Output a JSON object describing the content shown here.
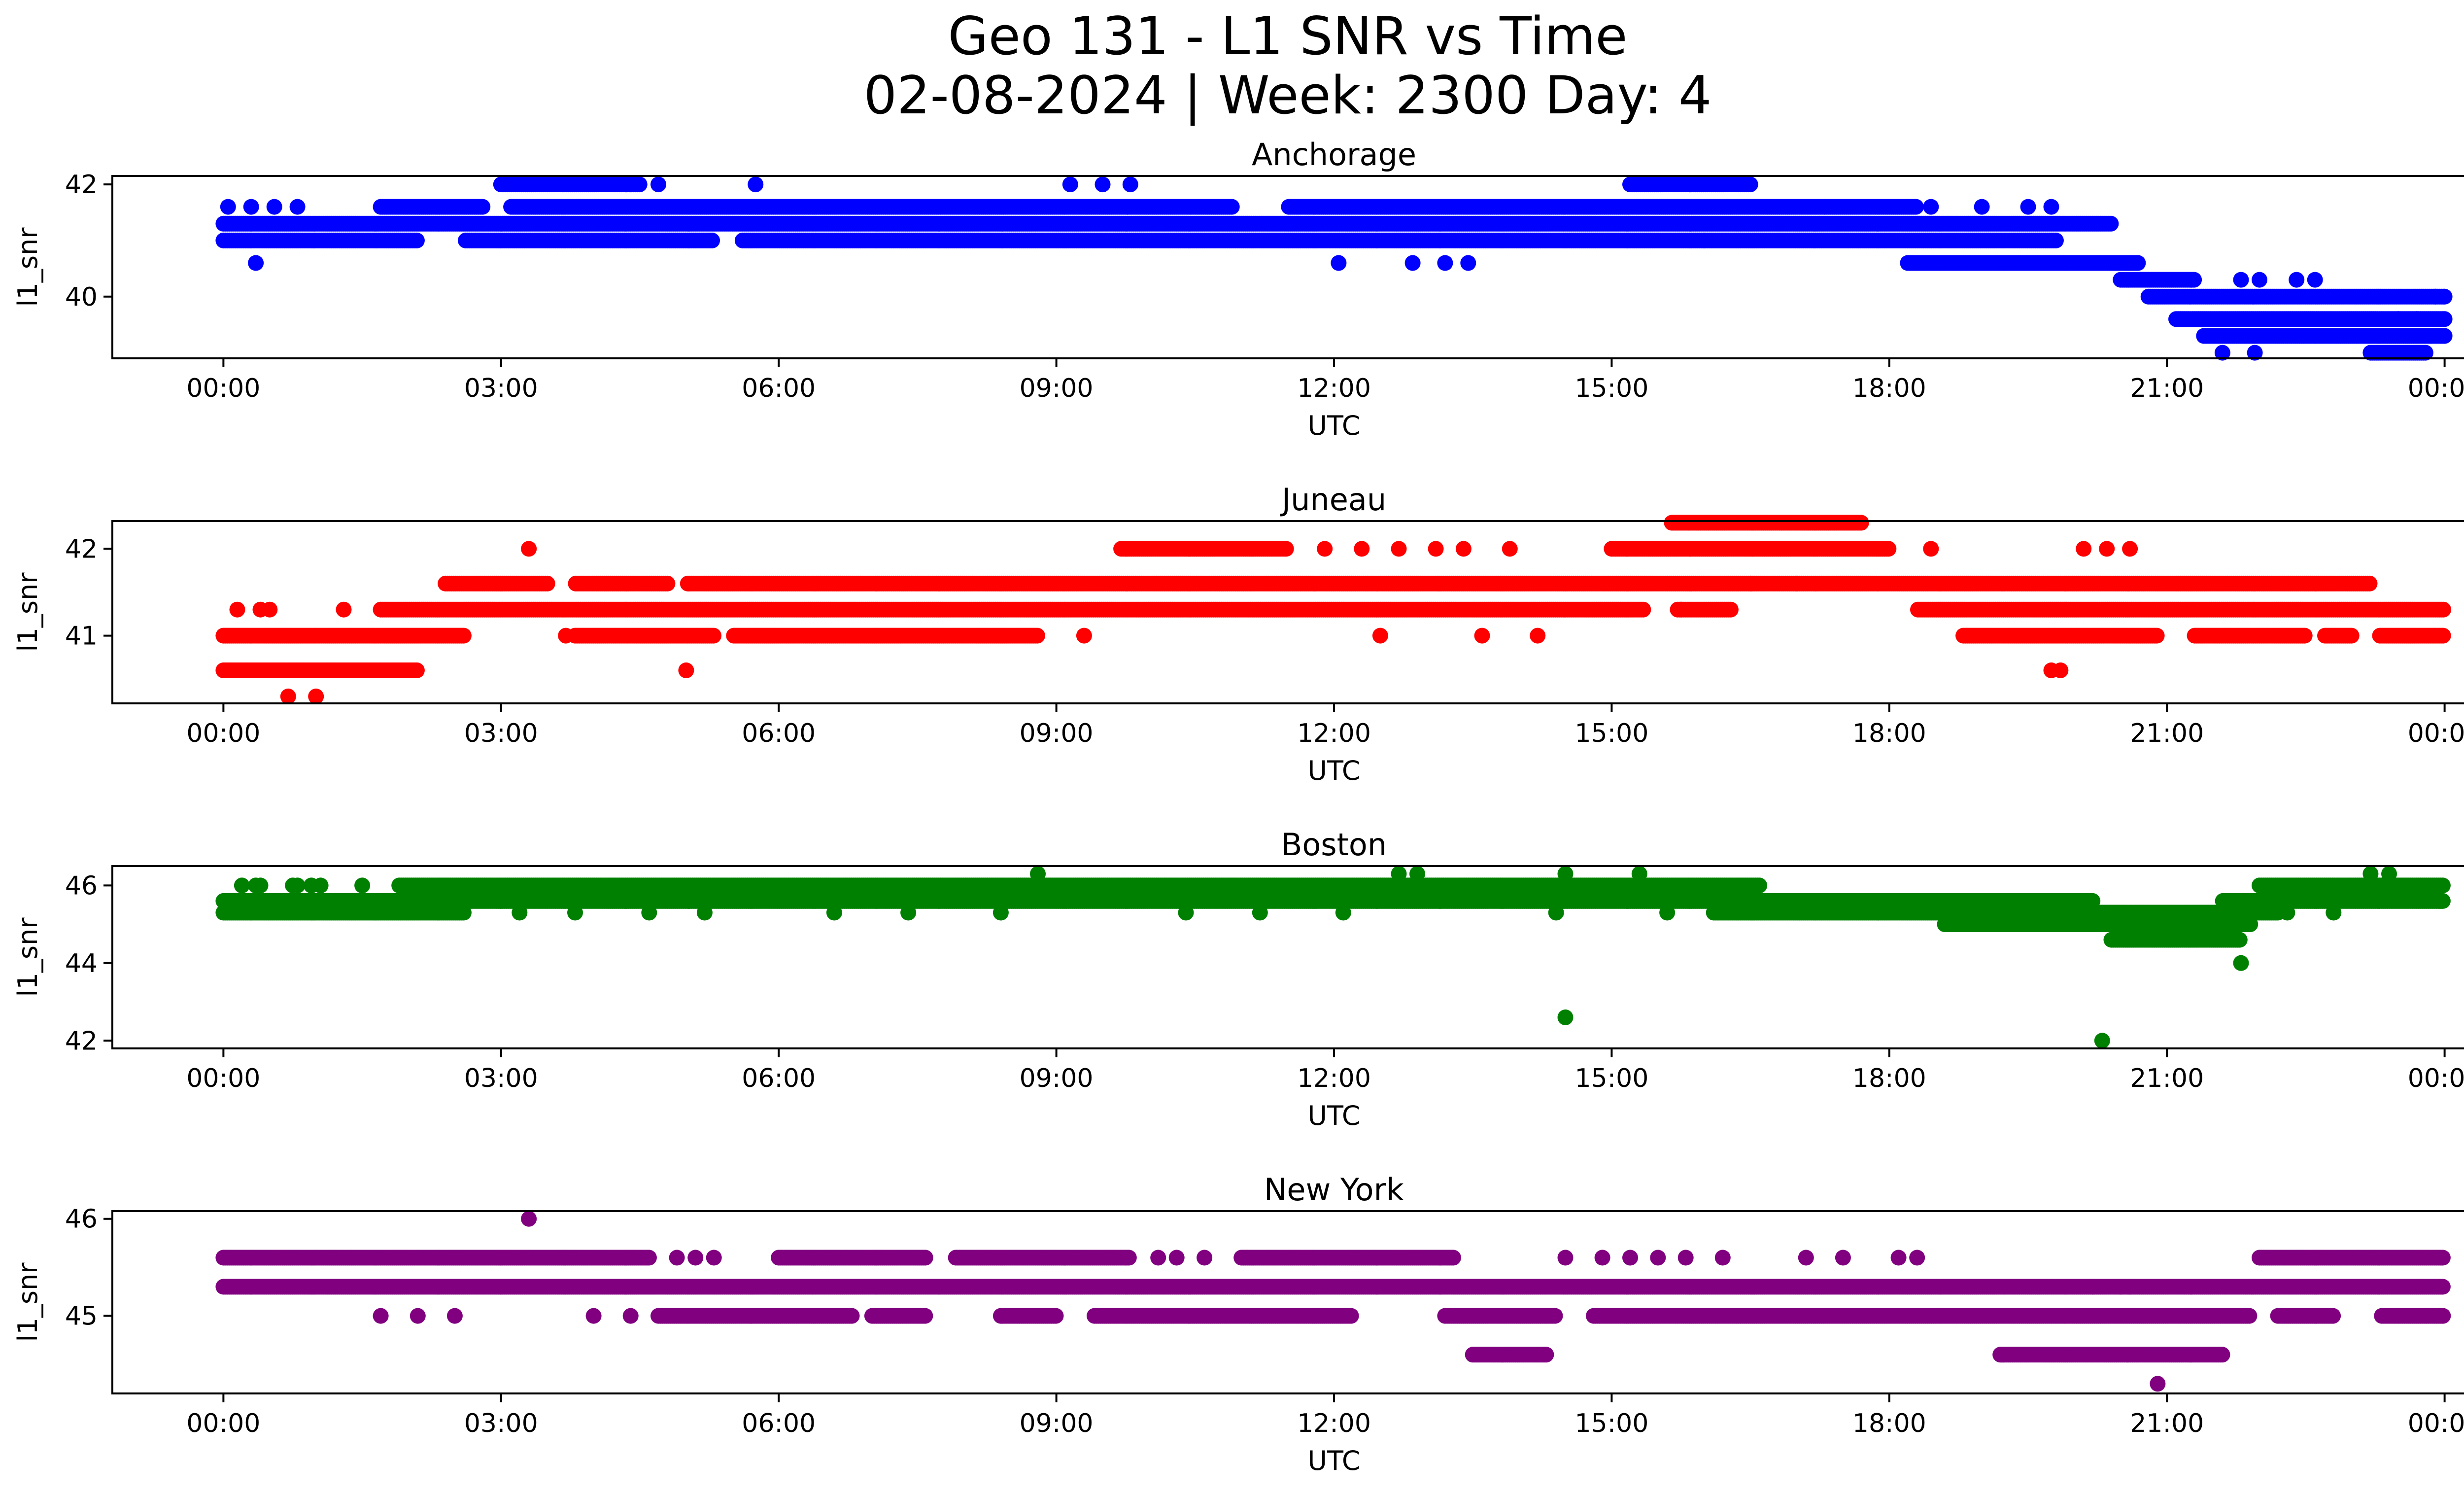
{
  "figure": {
    "title_line1": "Geo 131 - L1 SNR vs Time",
    "title_line2": "02-08-2024 | Week: 2300 Day: 4"
  },
  "chart_data": [
    {
      "type": "scatter",
      "title": "Anchorage",
      "xlabel": "UTC",
      "ylabel": "l1_snr",
      "color": "#0000ff",
      "xlim_hours": [
        -1.2,
        25.2
      ],
      "ylim": [
        38.9,
        42.15
      ],
      "yticks": [
        40,
        42
      ],
      "xticks": [
        "00:00",
        "03:00",
        "06:00",
        "09:00",
        "12:00",
        "15:00",
        "18:00",
        "21:00",
        "00:00"
      ],
      "bands": [
        {
          "y": 41.3,
          "from": 0.0,
          "to": 20.4
        },
        {
          "y": 41.0,
          "from": 0.0,
          "to": 19.8,
          "gaps": [
            [
              2.1,
              2.6
            ],
            [
              5.3,
              5.6
            ]
          ]
        },
        {
          "y": 41.6,
          "from": 1.7,
          "to": 18.3,
          "gaps": [
            [
              2.8,
              3.1
            ],
            [
              10.9,
              11.5
            ]
          ]
        },
        {
          "y": 40.6,
          "from": 18.2,
          "to": 20.7
        },
        {
          "y": 40.3,
          "from": 20.5,
          "to": 21.3
        },
        {
          "y": 40.0,
          "from": 20.8,
          "to": 24.0
        },
        {
          "y": 39.6,
          "from": 21.1,
          "to": 24.0
        },
        {
          "y": 39.3,
          "from": 21.4,
          "to": 24.0
        },
        {
          "y": 39.0,
          "from": 23.2,
          "to": 23.8
        },
        {
          "y": 42.0,
          "from": 3.0,
          "to": 4.5
        },
        {
          "y": 42.0,
          "from": 15.2,
          "to": 16.5
        }
      ],
      "points": [
        [
          0.35,
          40.6
        ],
        [
          0.05,
          41.6
        ],
        [
          0.3,
          41.6
        ],
        [
          0.55,
          41.6
        ],
        [
          0.8,
          41.6
        ],
        [
          12.05,
          40.6
        ],
        [
          12.85,
          40.6
        ],
        [
          13.2,
          40.6
        ],
        [
          13.45,
          40.6
        ],
        [
          5.75,
          42.0
        ],
        [
          9.15,
          42.0
        ],
        [
          9.5,
          42.0
        ],
        [
          9.8,
          42.0
        ],
        [
          4.7,
          42.0
        ],
        [
          4.4,
          42.0
        ],
        [
          16.0,
          41.0
        ],
        [
          21.8,
          40.3
        ],
        [
          22.0,
          40.3
        ],
        [
          22.4,
          40.3
        ],
        [
          22.6,
          40.3
        ],
        [
          21.6,
          39.0
        ],
        [
          21.95,
          39.0
        ],
        [
          23.9,
          40.0
        ],
        [
          24.0,
          40.0
        ],
        [
          23.5,
          39.6
        ],
        [
          23.7,
          39.6
        ],
        [
          24.0,
          39.6
        ],
        [
          23.85,
          39.3
        ],
        [
          24.0,
          39.3
        ],
        [
          17.3,
          41.6
        ],
        [
          18.45,
          41.6
        ],
        [
          19.0,
          41.6
        ],
        [
          19.5,
          41.6
        ],
        [
          19.75,
          41.6
        ]
      ]
    },
    {
      "type": "scatter",
      "title": "Juneau",
      "xlabel": "UTC",
      "ylabel": "l1_snr",
      "color": "#ff0000",
      "xlim_hours": [
        -1.2,
        25.2
      ],
      "ylim": [
        40.22,
        42.32
      ],
      "yticks": [
        41,
        42
      ],
      "xticks": [
        "00:00",
        "03:00",
        "06:00",
        "09:00",
        "12:00",
        "15:00",
        "18:00",
        "21:00",
        "00:00"
      ],
      "bands": [
        {
          "y": 41.0,
          "from": 0.0,
          "to": 2.6
        },
        {
          "y": 40.6,
          "from": 0.0,
          "to": 2.1
        },
        {
          "y": 41.3,
          "from": 1.7,
          "to": 24.0,
          "gaps": [
            [
              15.35,
              15.7
            ],
            [
              16.3,
              18.3
            ]
          ]
        },
        {
          "y": 41.6,
          "from": 2.4,
          "to": 23.2,
          "gaps": [
            [
              3.5,
              3.8
            ],
            [
              4.8,
              5.0
            ]
          ]
        },
        {
          "y": 41.0,
          "from": 3.8,
          "to": 8.8,
          "gaps": [
            [
              5.3,
              5.5
            ]
          ]
        },
        {
          "y": 42.0,
          "from": 15.0,
          "to": 18.0
        },
        {
          "y": 42.3,
          "from": 15.65,
          "to": 17.7
        },
        {
          "y": 42.0,
          "from": 9.7,
          "to": 11.5
        },
        {
          "y": 41.0,
          "from": 18.8,
          "to": 20.9
        },
        {
          "y": 41.0,
          "from": 21.3,
          "to": 24.0,
          "gaps": [
            [
              22.5,
              22.7
            ],
            [
              23.0,
              23.3
            ]
          ]
        }
      ],
      "points": [
        [
          0.15,
          41.3
        ],
        [
          0.4,
          41.3
        ],
        [
          0.5,
          41.3
        ],
        [
          1.3,
          41.3
        ],
        [
          0.7,
          40.3
        ],
        [
          1.0,
          40.3
        ],
        [
          3.3,
          42.0
        ],
        [
          5.0,
          40.6
        ],
        [
          9.3,
          41.0
        ],
        [
          12.5,
          41.0
        ],
        [
          13.6,
          41.0
        ],
        [
          14.2,
          41.0
        ],
        [
          15.75,
          41.3
        ],
        [
          16.5,
          41.6
        ],
        [
          17.0,
          41.6
        ],
        [
          11.9,
          42.0
        ],
        [
          12.3,
          42.0
        ],
        [
          12.7,
          42.0
        ],
        [
          13.1,
          42.0
        ],
        [
          13.4,
          42.0
        ],
        [
          13.9,
          42.0
        ],
        [
          18.45,
          42.0
        ],
        [
          19.75,
          40.6
        ],
        [
          19.85,
          40.6
        ],
        [
          20.1,
          42.0
        ],
        [
          20.35,
          42.0
        ],
        [
          20.6,
          42.0
        ],
        [
          3.7,
          41.0
        ]
      ]
    },
    {
      "type": "scatter",
      "title": "Boston",
      "xlabel": "UTC",
      "ylabel": "l1_snr",
      "color": "#008000",
      "xlim_hours": [
        -1.2,
        25.2
      ],
      "ylim": [
        41.8,
        46.5
      ],
      "yticks": [
        42,
        44,
        46
      ],
      "xticks": [
        "00:00",
        "03:00",
        "06:00",
        "09:00",
        "12:00",
        "15:00",
        "18:00",
        "21:00",
        "00:00"
      ],
      "bands": [
        {
          "y": 45.6,
          "from": 0.0,
          "to": 24.0,
          "gaps": [
            [
              20.2,
              21.6
            ]
          ]
        },
        {
          "y": 45.3,
          "from": 0.0,
          "to": 22.2,
          "gaps": [
            [
              2.6,
              16.1
            ]
          ]
        },
        {
          "y": 46.0,
          "from": 1.9,
          "to": 16.6
        },
        {
          "y": 45.0,
          "from": 18.6,
          "to": 21.9
        },
        {
          "y": 44.6,
          "from": 20.4,
          "to": 21.8
        },
        {
          "y": 46.0,
          "from": 22.0,
          "to": 24.0
        }
      ],
      "points": [
        [
          0.2,
          46.0
        ],
        [
          0.35,
          46.0
        ],
        [
          0.4,
          46.0
        ],
        [
          0.75,
          46.0
        ],
        [
          0.8,
          46.0
        ],
        [
          0.95,
          46.0
        ],
        [
          1.05,
          46.0
        ],
        [
          1.5,
          46.0
        ],
        [
          8.8,
          46.3
        ],
        [
          12.7,
          46.3
        ],
        [
          12.9,
          46.3
        ],
        [
          14.5,
          46.3
        ],
        [
          15.3,
          46.3
        ],
        [
          23.2,
          46.3
        ],
        [
          23.4,
          46.3
        ],
        [
          14.5,
          42.6
        ],
        [
          20.3,
          42.0
        ],
        [
          21.8,
          44.0
        ],
        [
          3.2,
          45.3
        ],
        [
          3.8,
          45.3
        ],
        [
          4.6,
          45.3
        ],
        [
          5.2,
          45.3
        ],
        [
          6.6,
          45.3
        ],
        [
          7.4,
          45.3
        ],
        [
          8.4,
          45.3
        ],
        [
          10.4,
          45.3
        ],
        [
          11.2,
          45.3
        ],
        [
          12.1,
          45.3
        ],
        [
          14.4,
          45.3
        ],
        [
          15.6,
          45.3
        ],
        [
          22.3,
          45.3
        ],
        [
          22.8,
          45.3
        ]
      ]
    },
    {
      "type": "scatter",
      "title": "New York",
      "xlabel": "UTC",
      "ylabel": "l1_snr",
      "color": "#800080",
      "xlim_hours": [
        -1.2,
        25.2
      ],
      "ylim": [
        44.2,
        46.08
      ],
      "yticks": [
        45,
        46
      ],
      "xticks": [
        "00:00",
        "03:00",
        "06:00",
        "09:00",
        "12:00",
        "15:00",
        "18:00",
        "21:00",
        "00:00"
      ],
      "bands": [
        {
          "y": 45.3,
          "from": 0.0,
          "to": 24.0
        },
        {
          "y": 45.6,
          "from": 0.0,
          "to": 4.6
        },
        {
          "y": 45.0,
          "from": 4.7,
          "to": 7.6,
          "gaps": [
            [
              6.8,
              7.0
            ]
          ]
        },
        {
          "y": 45.6,
          "from": 6.0,
          "to": 9.8,
          "gaps": [
            [
              7.6,
              7.9
            ]
          ]
        },
        {
          "y": 45.0,
          "from": 8.4,
          "to": 12.2,
          "gaps": [
            [
              9.0,
              9.4
            ]
          ]
        },
        {
          "y": 45.6,
          "from": 11.0,
          "to": 13.3
        },
        {
          "y": 45.0,
          "from": 13.2,
          "to": 21.9,
          "gaps": [
            [
              14.4,
              14.8
            ]
          ]
        },
        {
          "y": 44.6,
          "from": 19.2,
          "to": 21.6
        },
        {
          "y": 44.6,
          "from": 13.5,
          "to": 14.3
        },
        {
          "y": 45.6,
          "from": 22.0,
          "to": 24.0
        },
        {
          "y": 45.0,
          "from": 22.2,
          "to": 24.0,
          "gaps": [
            [
              22.8,
              23.3
            ]
          ]
        }
      ],
      "points": [
        [
          3.3,
          46.0
        ],
        [
          20.9,
          44.3
        ],
        [
          1.7,
          45.0
        ],
        [
          2.1,
          45.0
        ],
        [
          2.5,
          45.0
        ],
        [
          4.0,
          45.0
        ],
        [
          4.4,
          45.0
        ],
        [
          4.9,
          45.6
        ],
        [
          5.1,
          45.6
        ],
        [
          5.3,
          45.6
        ],
        [
          10.1,
          45.6
        ],
        [
          10.3,
          45.6
        ],
        [
          10.6,
          45.6
        ],
        [
          14.5,
          45.6
        ],
        [
          14.9,
          45.6
        ],
        [
          15.2,
          45.6
        ],
        [
          15.5,
          45.6
        ],
        [
          15.8,
          45.6
        ],
        [
          16.2,
          45.6
        ],
        [
          17.1,
          45.6
        ],
        [
          17.5,
          45.6
        ],
        [
          18.1,
          45.6
        ],
        [
          18.3,
          45.6
        ],
        [
          20.2,
          45.3
        ],
        [
          20.6,
          45.3
        ],
        [
          20.5,
          45.3
        ],
        [
          23.5,
          45.0
        ],
        [
          23.8,
          45.0
        ]
      ]
    }
  ]
}
